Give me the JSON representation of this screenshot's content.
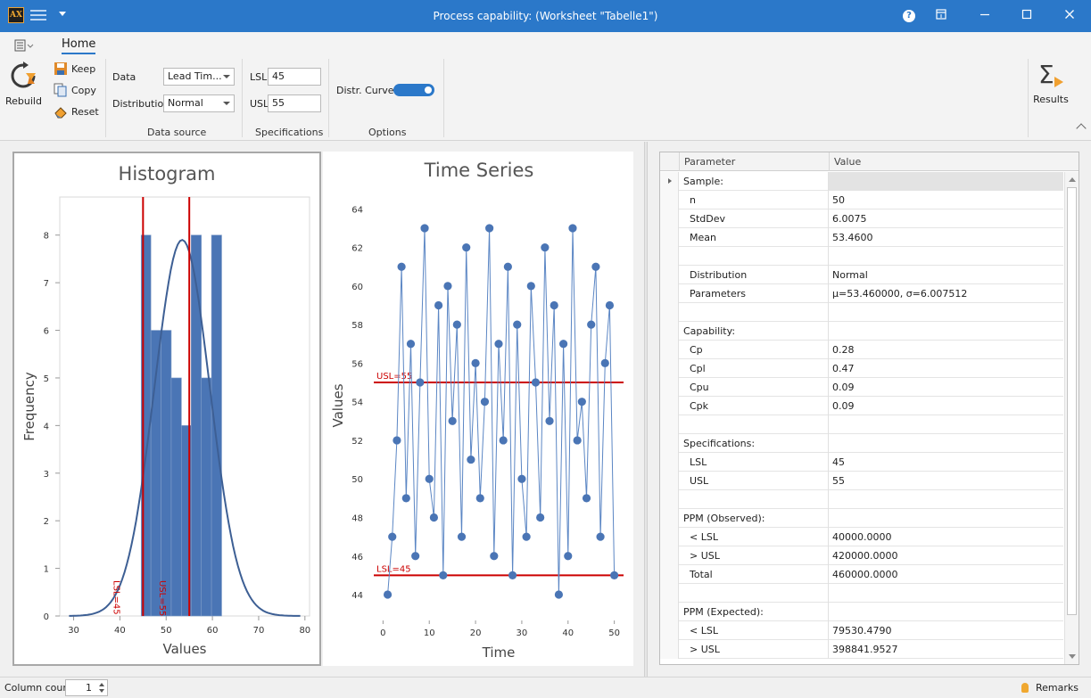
{
  "window": {
    "app_icon": "AX",
    "title": "Process capability:  (Worksheet \"Tabelle1\")",
    "controls": [
      "help-icon",
      "restore-icon",
      "minimize-icon",
      "maximize-icon",
      "close-icon"
    ]
  },
  "ribbon": {
    "tab": "Home",
    "rebuild_label": "Rebuild",
    "keep_label": "Keep",
    "copy_label": "Copy",
    "reset_label": "Reset",
    "data_label": "Data",
    "data_value": "Lead Tim...",
    "distribution_label": "Distribution",
    "distribution_value": "Normal",
    "data_source_group": "Data source",
    "lsl_label": "LSL",
    "lsl_value": "45",
    "usl_label": "USL",
    "usl_value": "55",
    "specifications_group": "Specifications",
    "distr_curve_label": "Distr. Curve",
    "distr_curve_on": true,
    "options_group": "Options",
    "results_label": "Results"
  },
  "chart_data": [
    {
      "type": "bar",
      "title": "Histogram",
      "xlabel": "Values",
      "ylabel": "Frequency",
      "xlim": [
        27,
        81
      ],
      "ylim": [
        0,
        8.8
      ],
      "xticks": [
        30,
        40,
        50,
        60,
        70,
        80
      ],
      "yticks": [
        0,
        1,
        2,
        3,
        4,
        5,
        6,
        7,
        8
      ],
      "bins": [
        {
          "x0": 44.6,
          "x1": 46.7,
          "value": 8
        },
        {
          "x0": 46.7,
          "x1": 48.9,
          "value": 6
        },
        {
          "x0": 48.9,
          "x1": 51.1,
          "value": 6
        },
        {
          "x0": 51.1,
          "x1": 53.3,
          "value": 5
        },
        {
          "x0": 53.3,
          "x1": 55.4,
          "value": 4
        },
        {
          "x0": 55.4,
          "x1": 57.6,
          "value": 8
        },
        {
          "x0": 57.6,
          "x1": 59.8,
          "value": 5
        },
        {
          "x0": 59.8,
          "x1": 62.0,
          "value": 8
        }
      ],
      "curve": {
        "distribution": "Normal",
        "mu": 53.46,
        "sigma": 6.0075,
        "peak": 7.9
      },
      "spec_lines": [
        {
          "label": "LSL=45",
          "value": 45
        },
        {
          "label": "USL=55",
          "value": 55
        }
      ]
    },
    {
      "type": "line",
      "title": "Time Series",
      "xlabel": "Time",
      "ylabel": "Values",
      "xlim": [
        -2,
        52
      ],
      "ylim": [
        42.8,
        64.8
      ],
      "xticks": [
        0,
        10,
        20,
        30,
        40,
        50
      ],
      "yticks": [
        44,
        46,
        48,
        50,
        52,
        54,
        56,
        58,
        60,
        62,
        64
      ],
      "x": [
        1,
        2,
        3,
        4,
        5,
        6,
        7,
        8,
        9,
        10,
        11,
        12,
        13,
        14,
        15,
        16,
        17,
        18,
        19,
        20,
        21,
        22,
        23,
        24,
        25,
        26,
        27,
        28,
        29,
        30,
        31,
        32,
        33,
        34,
        35,
        36,
        37,
        38,
        39,
        40,
        41,
        42,
        43,
        44,
        45,
        46,
        47,
        48,
        49,
        50
      ],
      "y": [
        44,
        47,
        52,
        61,
        49,
        57,
        46,
        55,
        63,
        50,
        48,
        59,
        45,
        60,
        53,
        58,
        47,
        62,
        51,
        56,
        49,
        54,
        63,
        46,
        57,
        52,
        61,
        45,
        58,
        50,
        47,
        60,
        55,
        48,
        62,
        53,
        59,
        44,
        57,
        46,
        63,
        52,
        54,
        49,
        58,
        61,
        47,
        56,
        59,
        45
      ],
      "spec_lines": [
        {
          "label": "USL=55",
          "value": 55
        },
        {
          "label": "LSL=45",
          "value": 45
        }
      ]
    }
  ],
  "grid": {
    "col_parameter": "Parameter",
    "col_value": "Value",
    "rows": [
      {
        "p": "Sample:",
        "v": "",
        "kind": "section",
        "selected": true
      },
      {
        "p": "n",
        "v": "50",
        "kind": "item"
      },
      {
        "p": "StdDev",
        "v": "6.0075",
        "kind": "item"
      },
      {
        "p": "Mean",
        "v": "53.4600",
        "kind": "item"
      },
      {
        "p": "",
        "v": "",
        "kind": "blank"
      },
      {
        "p": "Distribution",
        "v": "Normal",
        "kind": "item"
      },
      {
        "p": "Parameters",
        "v": "μ=53.460000, σ=6.007512",
        "kind": "item"
      },
      {
        "p": "",
        "v": "",
        "kind": "blank"
      },
      {
        "p": "Capability:",
        "v": "",
        "kind": "section"
      },
      {
        "p": "Cp",
        "v": "0.28",
        "kind": "item"
      },
      {
        "p": "Cpl",
        "v": "0.47",
        "kind": "item"
      },
      {
        "p": "Cpu",
        "v": "0.09",
        "kind": "item"
      },
      {
        "p": "Cpk",
        "v": "0.09",
        "kind": "item"
      },
      {
        "p": "",
        "v": "",
        "kind": "blank"
      },
      {
        "p": "Specifications:",
        "v": "",
        "kind": "section"
      },
      {
        "p": "LSL",
        "v": "45",
        "kind": "item"
      },
      {
        "p": "USL",
        "v": "55",
        "kind": "item"
      },
      {
        "p": "",
        "v": "",
        "kind": "blank"
      },
      {
        "p": "PPM (Observed):",
        "v": "",
        "kind": "section"
      },
      {
        "p": "< LSL",
        "v": "40000.0000",
        "kind": "item"
      },
      {
        "p": "> USL",
        "v": "420000.0000",
        "kind": "item"
      },
      {
        "p": "Total",
        "v": "460000.0000",
        "kind": "item"
      },
      {
        "p": "",
        "v": "",
        "kind": "blank"
      },
      {
        "p": "PPM (Expected):",
        "v": "",
        "kind": "section"
      },
      {
        "p": "< LSL",
        "v": "79530.4790",
        "kind": "item"
      },
      {
        "p": "> USL",
        "v": "398841.9527",
        "kind": "item"
      }
    ]
  },
  "status": {
    "column_count_label": "Column count",
    "column_count_value": "1",
    "remarks_label": "Remarks"
  },
  "colors": {
    "accent": "#2b78c9",
    "bar": "#4a75b5",
    "spec_line": "#cc0000",
    "curve": "#3d5f94"
  }
}
